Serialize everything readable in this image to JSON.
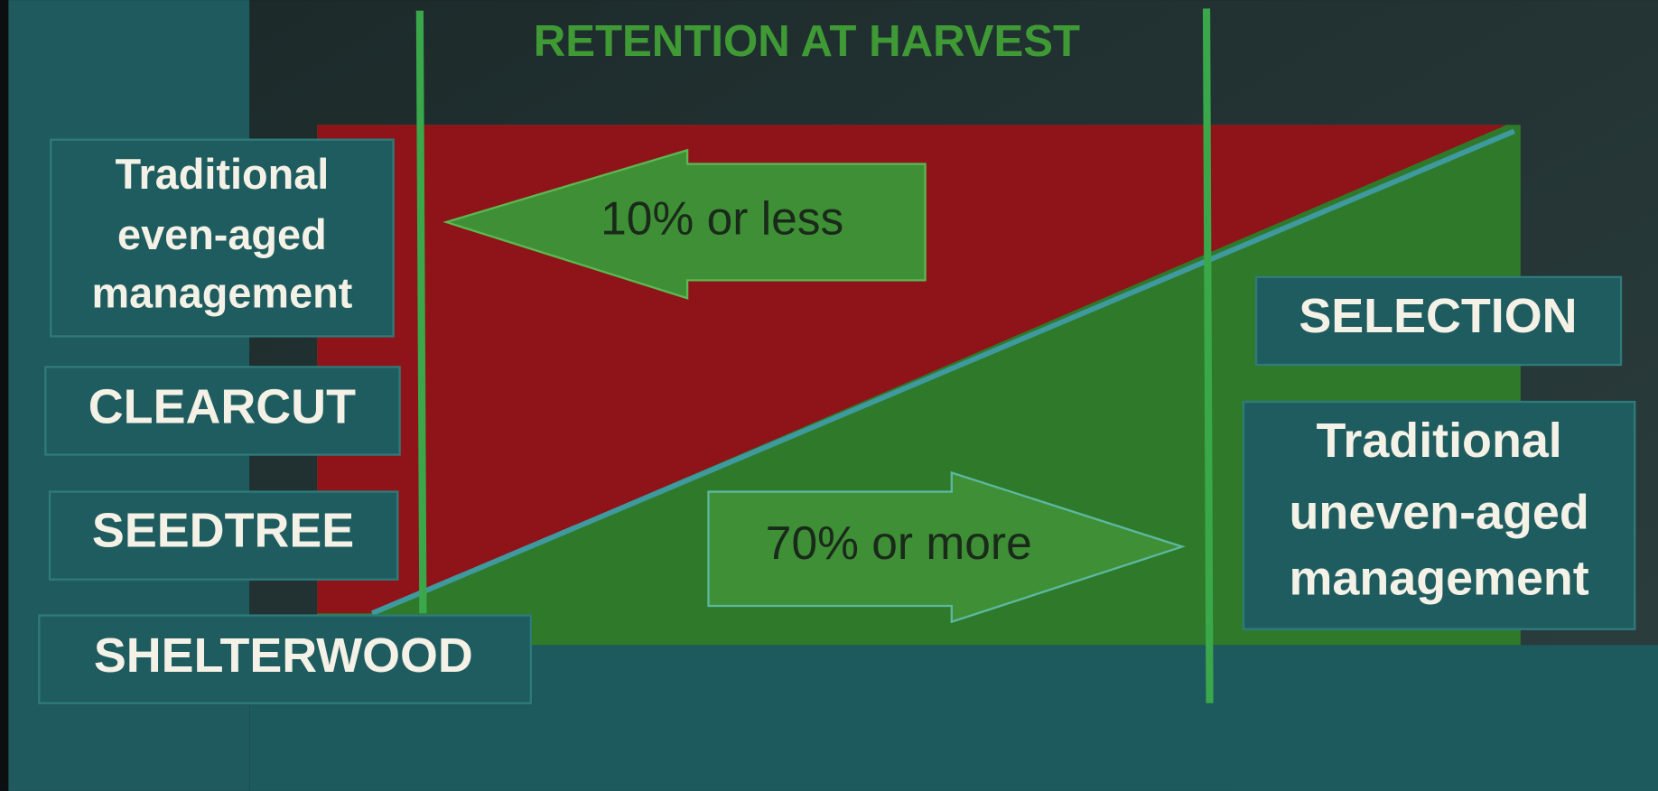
{
  "title": "RETENTION AT HARVEST",
  "left_labels": [
    {
      "lines": [
        "Traditional",
        "even-aged",
        "management"
      ]
    },
    {
      "lines": [
        "CLEARCUT"
      ]
    },
    {
      "lines": [
        "SEEDTREE"
      ]
    },
    {
      "lines": [
        "SHELTERWOOD"
      ]
    }
  ],
  "right_labels": [
    {
      "lines": [
        "SELECTION"
      ]
    },
    {
      "lines": [
        "Traditional",
        "uneven-aged",
        "management"
      ]
    }
  ],
  "arrows": [
    {
      "label": "10% or less"
    },
    {
      "label": "70% or more"
    }
  ]
}
